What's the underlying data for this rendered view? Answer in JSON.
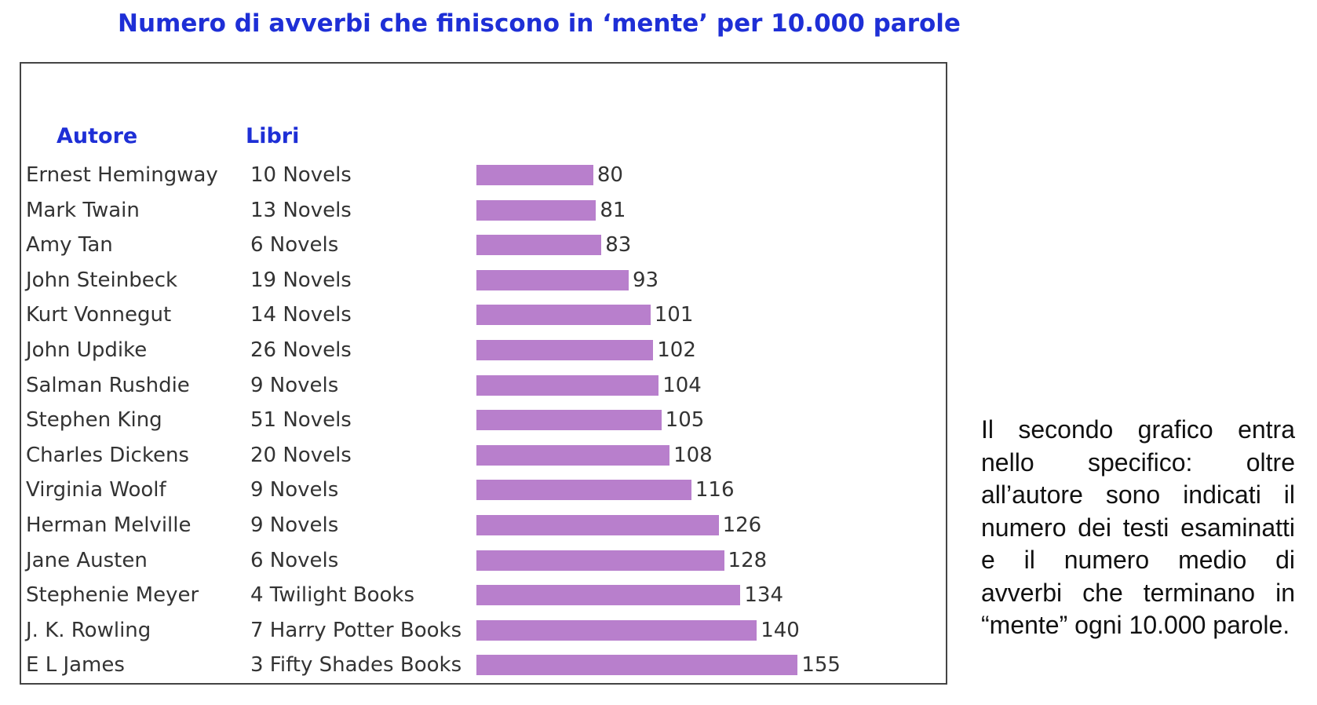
{
  "title": "Numero di avverbi che finiscono in ‘mente’ per 10.000 parole",
  "chart_data": {
    "type": "bar",
    "orientation": "horizontal",
    "title": "Numero di avverbi che finiscono in ‘mente’ per 10.000 parole",
    "column_headers": {
      "author": "Autore",
      "books": "Libri"
    },
    "categories": [
      "Ernest Hemingway",
      "Mark Twain",
      "Amy Tan",
      "John Steinbeck",
      "Kurt Vonnegut",
      "John Updike",
      "Salman Rushdie",
      "Stephen King",
      "Charles Dickens",
      "Virginia Woolf",
      "Herman Melville",
      "Jane Austen",
      "Stephenie Meyer",
      "J. K. Rowling",
      "E L James"
    ],
    "books": [
      "10 Novels",
      "13 Novels",
      "6 Novels",
      "19 Novels",
      "14 Novels",
      "26 Novels",
      "9 Novels",
      "51 Novels",
      "20 Novels",
      "9 Novels",
      "9 Novels",
      "6 Novels",
      "4 Twilight Books",
      "7 Harry Potter Books",
      "3 Fifty Shades Books"
    ],
    "values": [
      80,
      81,
      83,
      93,
      101,
      102,
      104,
      105,
      108,
      116,
      126,
      128,
      134,
      140,
      155
    ],
    "bar_color": "#b87fcc",
    "header_color": "#1e2fd6",
    "grid": false
  },
  "note": "Il secondo grafico entra nello specifico: oltre all’autore sono indicati il numero dei testi esaminatti e il numero medio di avverbi che terminano in “mente” ogni 10.000 parole."
}
